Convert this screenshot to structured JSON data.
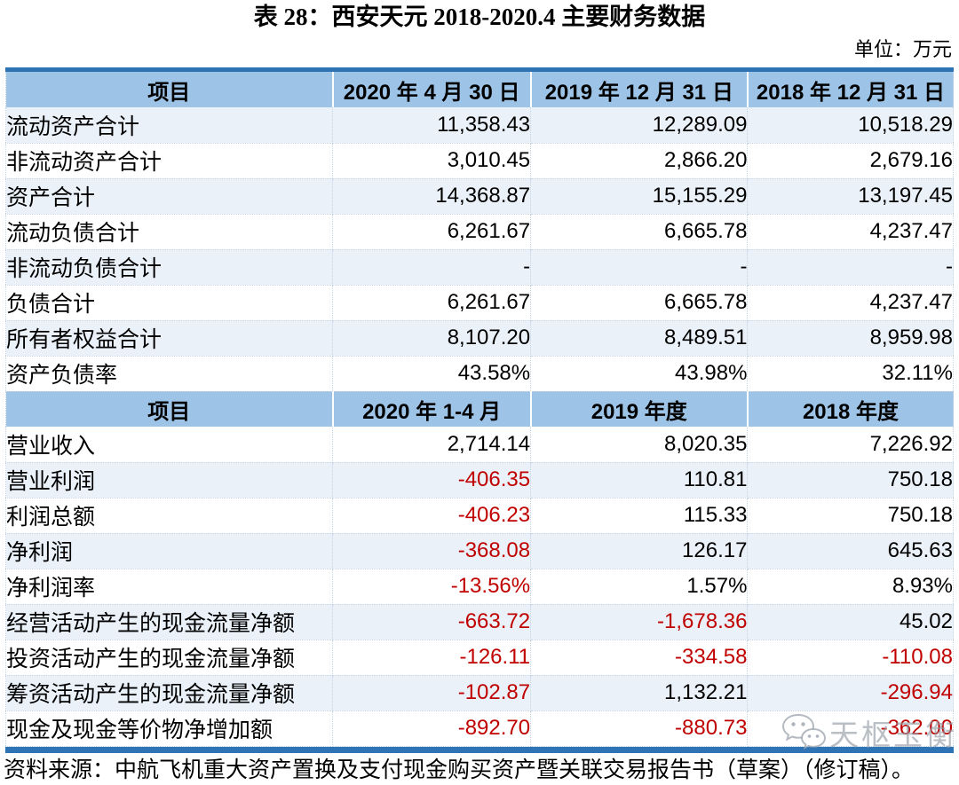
{
  "page": {
    "title": "表 28：西安天元 2018-2020.4 主要财务数据",
    "unit_note": "单位：万元",
    "source_note": "资料来源：中航飞机重大资产置换及支付现金购买资产暨关联交易报告书（草案）（修订稿）。",
    "watermark_text": "天枢玉衡"
  },
  "colors": {
    "accent_bar": "#2E74B5",
    "header_bg": "#9DC3E6",
    "band_bg": "#EAF1F9",
    "negative_text": "#C00000",
    "dotted_border": "#C6D5E6",
    "watermark_gray": "#949CA6"
  },
  "table": {
    "sections": [
      {
        "header": [
          "项目",
          "2020 年 4 月 30 日",
          "2019 年 12 月 31 日",
          "2018 年 12 月 31 日"
        ],
        "rows": [
          {
            "label": "流动资产合计",
            "values": [
              "11,358.43",
              "12,289.09",
              "10,518.29"
            ],
            "band": true
          },
          {
            "label": "非流动资产合计",
            "values": [
              "3,010.45",
              "2,866.20",
              "2,679.16"
            ],
            "band": false
          },
          {
            "label": "资产合计",
            "values": [
              "14,368.87",
              "15,155.29",
              "13,197.45"
            ],
            "band": true
          },
          {
            "label": "流动负债合计",
            "values": [
              "6,261.67",
              "6,665.78",
              "4,237.47"
            ],
            "band": false
          },
          {
            "label": "非流动负债合计",
            "values": [
              "-",
              "-",
              "-"
            ],
            "band": true
          },
          {
            "label": "负债合计",
            "values": [
              "6,261.67",
              "6,665.78",
              "4,237.47"
            ],
            "band": false
          },
          {
            "label": "所有者权益合计",
            "values": [
              "8,107.20",
              "8,489.51",
              "8,959.98"
            ],
            "band": true
          },
          {
            "label": "资产负债率",
            "values": [
              "43.58%",
              "43.98%",
              "32.11%"
            ],
            "band": false
          }
        ]
      },
      {
        "header": [
          "项目",
          "2020 年 1-4 月",
          "2019 年度",
          "2018 年度"
        ],
        "rows": [
          {
            "label": "营业收入",
            "values": [
              "2,714.14",
              "8,020.35",
              "7,226.92"
            ],
            "band": false
          },
          {
            "label": "营业利润",
            "values": [
              "-406.35",
              "110.81",
              "750.18"
            ],
            "band": true
          },
          {
            "label": "利润总额",
            "values": [
              "-406.23",
              "115.33",
              "750.18"
            ],
            "band": false
          },
          {
            "label": "净利润",
            "values": [
              "-368.08",
              "126.17",
              "645.63"
            ],
            "band": true
          },
          {
            "label": "净利润率",
            "values": [
              "-13.56%",
              "1.57%",
              "8.93%"
            ],
            "band": false
          },
          {
            "label": "经营活动产生的现金流量净额",
            "values": [
              "-663.72",
              "-1,678.36",
              "45.02"
            ],
            "band": true
          },
          {
            "label": "投资活动产生的现金流量净额",
            "values": [
              "-126.11",
              "-334.58",
              "-110.08"
            ],
            "band": false
          },
          {
            "label": "筹资活动产生的现金流量净额",
            "values": [
              "-102.87",
              "1,132.21",
              "-296.94"
            ],
            "band": true
          },
          {
            "label": "现金及现金等价物净增加额",
            "values": [
              "-892.70",
              "-880.73",
              "-362.00"
            ],
            "band": false
          }
        ]
      }
    ]
  }
}
